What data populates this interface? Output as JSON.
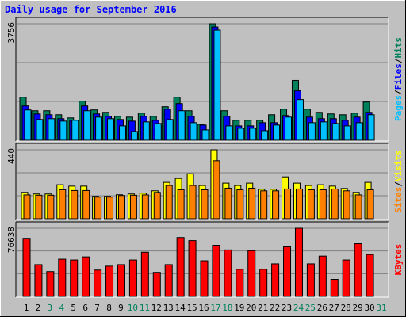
{
  "chart_data": {
    "type": "bar",
    "title": "Daily usage for September 2016",
    "categories": [
      "1",
      "2",
      "3",
      "4",
      "5",
      "6",
      "7",
      "8",
      "9",
      "10",
      "11",
      "12",
      "13",
      "14",
      "15",
      "16",
      "17",
      "18",
      "19",
      "20",
      "21",
      "22",
      "23",
      "24",
      "25",
      "26",
      "27",
      "28",
      "29",
      "30",
      "31"
    ],
    "category_colors": [
      "#000000",
      "#000000",
      "#00805c",
      "#00805c",
      "#000000",
      "#000000",
      "#000000",
      "#000000",
      "#000000",
      "#00805c",
      "#00805c",
      "#000000",
      "#000000",
      "#000000",
      "#000000",
      "#000000",
      "#00805c",
      "#00805c",
      "#000000",
      "#000000",
      "#000000",
      "#000000",
      "#000000",
      "#00805c",
      "#00805c",
      "#000000",
      "#000000",
      "#000000",
      "#000000",
      "#000000",
      "#00805c"
    ],
    "legend_separator": "/",
    "panels": [
      {
        "ylim": [
          0,
          3756
        ],
        "yticks": [
          3756
        ],
        "series": [
          {
            "name": "Hits",
            "color": "#00805c",
            "values": [
              1389,
              952,
              952,
              823,
              720,
              1261,
              978,
              900,
              772,
              746,
              875,
              772,
              1081,
              1389,
              952,
              515,
              3756,
              952,
              643,
              643,
              643,
              823,
              1003,
              1930,
              1003,
              900,
              849,
              823,
              875,
              1235,
              null
            ]
          },
          {
            "name": "Files",
            "color": "#0000ff",
            "values": [
              1106,
              849,
              823,
              695,
              643,
              1106,
              849,
              772,
              669,
              617,
              772,
              643,
              1003,
              1183,
              772,
              489,
              3654,
              772,
              463,
              463,
              566,
              566,
              798,
              1595,
              746,
              695,
              695,
              643,
              746,
              900,
              null
            ]
          },
          {
            "name": "Pages",
            "color": "#00c0ff",
            "values": [
              978,
              669,
              695,
              617,
              643,
              952,
              746,
              695,
              463,
              283,
              592,
              540,
              669,
              952,
              566,
              334,
              3551,
              463,
              386,
              386,
              309,
              489,
              746,
              1312,
              566,
              592,
              540,
              463,
              566,
              823,
              null
            ]
          }
        ]
      },
      {
        "ylim": [
          0,
          440
        ],
        "yticks": [
          440
        ],
        "series": [
          {
            "name": "Visits",
            "color": "#ffff00",
            "values": [
              168,
              158,
              158,
              217,
              208,
              208,
              143,
              143,
              153,
              158,
              163,
              178,
              232,
              257,
              287,
              212,
              440,
              227,
              212,
              227,
              188,
              188,
              267,
              227,
              212,
              217,
              208,
              193,
              168,
              232,
              null
            ]
          },
          {
            "name": "Sites",
            "color": "#ff8000",
            "values": [
              152,
              150,
              150,
              185,
              180,
              180,
              138,
              138,
              148,
              150,
              152,
              168,
              212,
              185,
              212,
              185,
              370,
              195,
              185,
              195,
              178,
              178,
              190,
              190,
              185,
              185,
              190,
              178,
              152,
              185,
              null
            ]
          }
        ]
      },
      {
        "ylim": [
          0,
          76638
        ],
        "yticks": [
          76638
        ],
        "series": [
          {
            "name": "KBytes",
            "color": "#ff0000",
            "values": [
              65325,
              35711,
              27872,
              41808,
              40937,
              44421,
              29614,
              33969,
              35711,
              40937,
              49647,
              27001,
              35711,
              66196,
              62712,
              40066,
              57486,
              52260,
              30485,
              51389,
              30485,
              36582,
              55744,
              76638,
              36582,
              45292,
              19162,
              40937,
              59228,
              47034,
              null
            ]
          }
        ]
      }
    ]
  }
}
